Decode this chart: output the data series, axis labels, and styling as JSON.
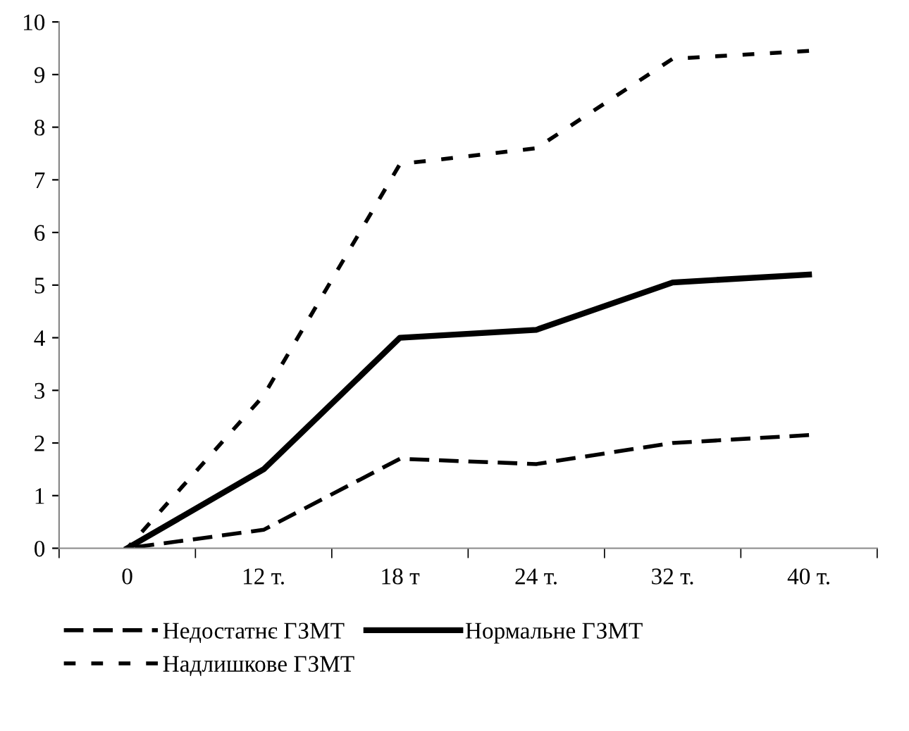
{
  "chart_data": {
    "type": "line",
    "categories": [
      "0",
      "12 т.",
      "18 т",
      "24 т.",
      "32 т.",
      "40 т."
    ],
    "series": [
      {
        "name": "Недостатнє ГЗМТ",
        "color": "#000000",
        "line_style": "dashed",
        "values": [
          0,
          0.35,
          1.7,
          1.6,
          2.0,
          2.15
        ]
      },
      {
        "name": "Нормальне ГЗМТ",
        "color": "#000000",
        "line_style": "solid",
        "values": [
          0,
          1.5,
          4.0,
          4.15,
          5.05,
          5.2
        ]
      },
      {
        "name": "Надлишкове ГЗМТ",
        "color": "#000000",
        "line_style": "dotted",
        "values": [
          0,
          2.9,
          7.3,
          7.6,
          9.3,
          9.45
        ]
      }
    ],
    "ylim": [
      0,
      10
    ],
    "yticks": [
      0,
      1,
      2,
      3,
      4,
      5,
      6,
      7,
      8,
      9,
      10
    ],
    "grid": false,
    "legend": "bottom",
    "marker": "none"
  }
}
